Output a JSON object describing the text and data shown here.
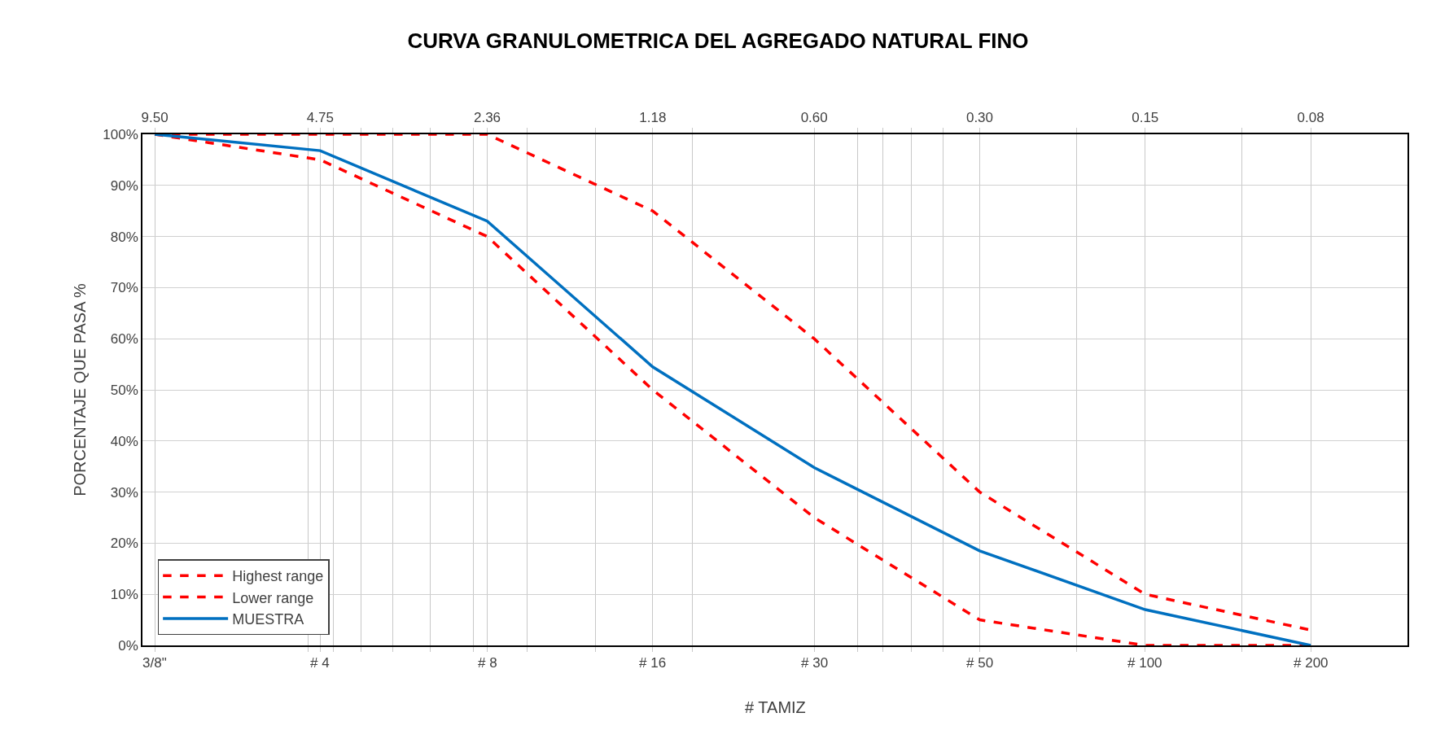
{
  "chart_data": {
    "type": "line",
    "title": "CURVA GRANULOMETRICA DEL AGREGADO NATURAL FINO",
    "xlabel": "# TAMIZ",
    "ylabel": "PORCENTAJE QUE PASA %",
    "x": [
      9.5,
      4.75,
      2.36,
      1.18,
      0.6,
      0.3,
      0.15,
      0.075
    ],
    "series": [
      {
        "name": "Highest range",
        "color": "#ff0000",
        "line_style": "dashed",
        "values": [
          100,
          100,
          100,
          85,
          60,
          30,
          10,
          3
        ]
      },
      {
        "name": "Lower range",
        "color": "#ff0000",
        "line_style": "dashed",
        "values": [
          100,
          95,
          80,
          50,
          25,
          5,
          0,
          0
        ]
      },
      {
        "name": "MUESTRA",
        "color": "#0070c0",
        "line_style": "solid",
        "values": [
          100,
          96.8,
          83,
          54.5,
          34.8,
          18.5,
          7,
          0
        ]
      }
    ],
    "log": "x",
    "xlim": [
      10,
      0.05
    ],
    "ylim": [
      0,
      100
    ],
    "xticks": [
      {
        "value": 9.5,
        "label": "9.50"
      },
      {
        "value": 4.75,
        "label": "4.75"
      },
      {
        "value": 2.36,
        "label": "2.36"
      },
      {
        "value": 1.18,
        "label": "1.18"
      },
      {
        "value": 0.6,
        "label": "0.60"
      },
      {
        "value": 0.3,
        "label": "0.30"
      },
      {
        "value": 0.15,
        "label": "0.15"
      },
      {
        "value": 0.075,
        "label": "0.08"
      },
      {
        "value": 5,
        "label": null
      },
      {
        "value": 4.5,
        "label": null
      },
      {
        "value": 4,
        "label": null
      },
      {
        "value": 3.5,
        "label": null
      },
      {
        "value": 3,
        "label": null
      },
      {
        "value": 2.5,
        "label": null
      },
      {
        "value": 2,
        "label": null
      },
      {
        "value": 1.5,
        "label": null
      },
      {
        "value": 1,
        "label": null
      },
      {
        "value": 0.5,
        "label": null
      },
      {
        "value": 0.45,
        "label": null
      },
      {
        "value": 0.4,
        "label": null
      },
      {
        "value": 0.35,
        "label": null
      },
      {
        "value": 0.2,
        "label": null
      },
      {
        "value": 0.1,
        "label": null
      }
    ],
    "annotations": [
      "3/8\"",
      "# 4",
      "# 8",
      "# 16",
      "# 30",
      "# 50",
      "# 100",
      "# 200"
    ],
    "yticks": [
      {
        "value": 0,
        "label": "0%"
      },
      {
        "value": 10,
        "label": "10%"
      },
      {
        "value": 20,
        "label": "20%"
      },
      {
        "value": 30,
        "label": "30%"
      },
      {
        "value": 40,
        "label": "40%"
      },
      {
        "value": 50,
        "label": "50%"
      },
      {
        "value": 60,
        "label": "60%"
      },
      {
        "value": 70,
        "label": "70%"
      },
      {
        "value": 80,
        "label": "80%"
      },
      {
        "value": 90,
        "label": "90%"
      },
      {
        "value": 100,
        "label": "100%"
      }
    ],
    "grid": true,
    "legend": "bottom left",
    "marker": "none"
  }
}
